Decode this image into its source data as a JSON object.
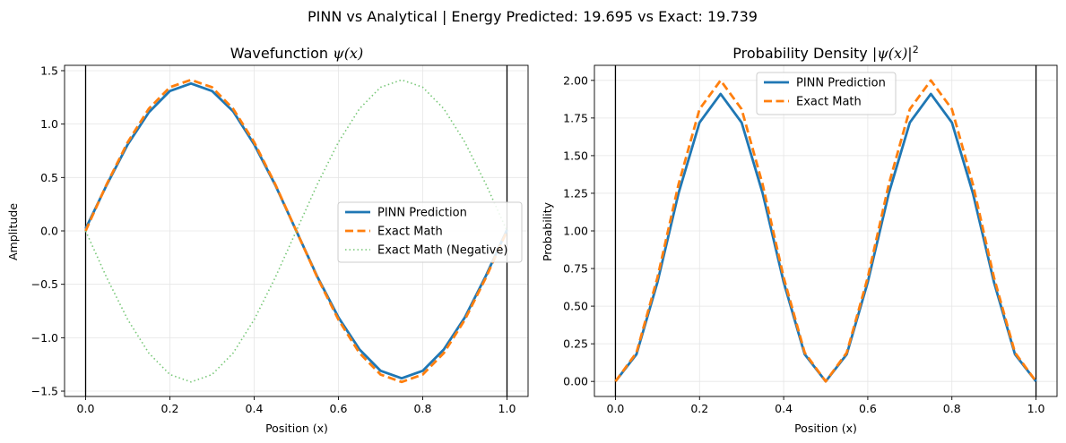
{
  "figure": {
    "suptitle": "PINN vs Analytical | Energy Predicted: 19.695 vs Exact: 19.739"
  },
  "chart_data": [
    {
      "type": "line",
      "title_prefix": "Wavefunction ",
      "title_math": "ψ(x)",
      "title": "Wavefunction ψ(x)",
      "xlabel": "Position (x)",
      "ylabel": "Amplitude",
      "xlim": [
        -0.05,
        1.05
      ],
      "ylim": [
        -1.55,
        1.55
      ],
      "xticks": [
        0.0,
        0.2,
        0.4,
        0.6,
        0.8,
        1.0
      ],
      "xtick_labels": [
        "0.0",
        "0.2",
        "0.4",
        "0.6",
        "0.8",
        "1.0"
      ],
      "yticks": [
        -1.5,
        -1.0,
        -0.5,
        0.0,
        0.5,
        1.0,
        1.5
      ],
      "ytick_labels": [
        "−1.5",
        "−1.0",
        "−0.5",
        "0.0",
        "0.5",
        "1.0",
        "1.5"
      ],
      "vlines": [
        0.0,
        1.0
      ],
      "grid": true,
      "legend_position": "center-right",
      "series": [
        {
          "name": "PINN Prediction",
          "color": "#1f77b4",
          "style": "solid",
          "x": [
            0.0,
            0.05,
            0.1,
            0.15,
            0.2,
            0.25,
            0.3,
            0.35,
            0.4,
            0.45,
            0.5,
            0.55,
            0.6,
            0.65,
            0.7,
            0.75,
            0.8,
            0.85,
            0.9,
            0.95,
            1.0
          ],
          "y": [
            0.02,
            0.43,
            0.81,
            1.11,
            1.31,
            1.38,
            1.31,
            1.12,
            0.81,
            0.43,
            0.0,
            -0.43,
            -0.81,
            -1.11,
            -1.31,
            -1.38,
            -1.31,
            -1.11,
            -0.81,
            -0.42,
            0.01
          ]
        },
        {
          "name": "Exact Math",
          "color": "#ff7f0e",
          "style": "dashed",
          "x": [
            0.0,
            0.05,
            0.1,
            0.15,
            0.2,
            0.25,
            0.3,
            0.35,
            0.4,
            0.45,
            0.5,
            0.55,
            0.6,
            0.65,
            0.7,
            0.75,
            0.8,
            0.85,
            0.9,
            0.95,
            1.0
          ],
          "y": [
            0.0,
            0.437,
            0.831,
            1.144,
            1.345,
            1.414,
            1.345,
            1.144,
            0.831,
            0.437,
            0.0,
            -0.437,
            -0.831,
            -1.144,
            -1.345,
            -1.414,
            -1.345,
            -1.144,
            -0.831,
            -0.437,
            0.0
          ]
        },
        {
          "name": "Exact Math (Negative)",
          "color": "#77c777",
          "style": "dotted",
          "x": [
            0.0,
            0.05,
            0.1,
            0.15,
            0.2,
            0.25,
            0.3,
            0.35,
            0.4,
            0.45,
            0.5,
            0.55,
            0.6,
            0.65,
            0.7,
            0.75,
            0.8,
            0.85,
            0.9,
            0.95,
            1.0
          ],
          "y": [
            0.0,
            -0.437,
            -0.831,
            -1.144,
            -1.345,
            -1.414,
            -1.345,
            -1.144,
            -0.831,
            -0.437,
            0.0,
            0.437,
            0.831,
            1.144,
            1.345,
            1.414,
            1.345,
            1.144,
            0.831,
            0.437,
            0.0
          ]
        }
      ]
    },
    {
      "type": "line",
      "title_prefix": "Probability Density ",
      "title_math": "|ψ(x)|",
      "title_sup": "2",
      "title": "Probability Density |ψ(x)|²",
      "xlabel": "Position (x)",
      "ylabel": "Probability",
      "xlim": [
        -0.05,
        1.05
      ],
      "ylim": [
        -0.1,
        2.1
      ],
      "xticks": [
        0.0,
        0.2,
        0.4,
        0.6,
        0.8,
        1.0
      ],
      "xtick_labels": [
        "0.0",
        "0.2",
        "0.4",
        "0.6",
        "0.8",
        "1.0"
      ],
      "yticks": [
        0.0,
        0.25,
        0.5,
        0.75,
        1.0,
        1.25,
        1.5,
        1.75,
        2.0
      ],
      "ytick_labels": [
        "0.00",
        "0.25",
        "0.50",
        "0.75",
        "1.00",
        "1.25",
        "1.50",
        "1.75",
        "2.00"
      ],
      "vlines": [
        0.0,
        1.0
      ],
      "grid": true,
      "legend_position": "upper-center",
      "series": [
        {
          "name": "PINN Prediction",
          "color": "#1f77b4",
          "style": "solid",
          "x": [
            0.0,
            0.05,
            0.1,
            0.15,
            0.2,
            0.25,
            0.3,
            0.35,
            0.4,
            0.45,
            0.5,
            0.55,
            0.6,
            0.65,
            0.7,
            0.75,
            0.8,
            0.85,
            0.9,
            0.95,
            1.0
          ],
          "y": [
            0.0,
            0.18,
            0.66,
            1.25,
            1.72,
            1.91,
            1.72,
            1.25,
            0.66,
            0.18,
            0.0,
            0.18,
            0.66,
            1.25,
            1.72,
            1.91,
            1.72,
            1.25,
            0.66,
            0.18,
            0.0
          ]
        },
        {
          "name": "Exact Math",
          "color": "#ff7f0e",
          "style": "dashed",
          "x": [
            0.0,
            0.05,
            0.1,
            0.15,
            0.2,
            0.25,
            0.3,
            0.35,
            0.4,
            0.45,
            0.5,
            0.55,
            0.6,
            0.65,
            0.7,
            0.75,
            0.8,
            0.85,
            0.9,
            0.95,
            1.0
          ],
          "y": [
            0.0,
            0.191,
            0.691,
            1.309,
            1.809,
            2.0,
            1.809,
            1.309,
            0.691,
            0.191,
            0.0,
            0.191,
            0.691,
            1.309,
            1.809,
            2.0,
            1.809,
            1.309,
            0.691,
            0.191,
            0.0
          ]
        }
      ]
    }
  ]
}
